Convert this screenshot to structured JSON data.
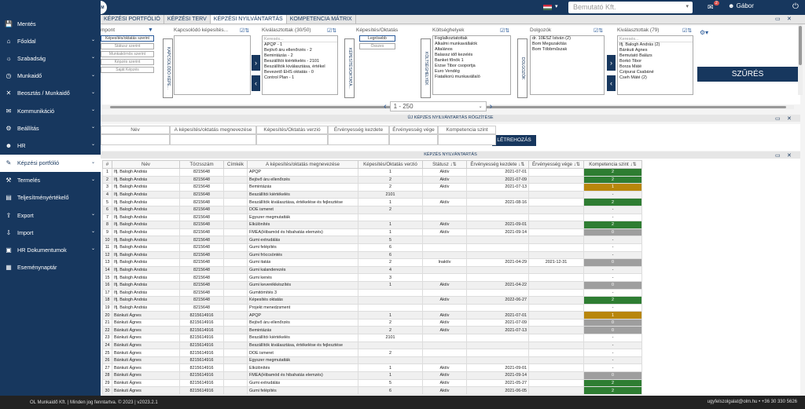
{
  "topbar": {
    "logo": "OLM",
    "lang": "▾",
    "company": "Bemutató Kft.",
    "mail_badge": "2",
    "user": "Gábor"
  },
  "sidebar": {
    "items": [
      {
        "icon": "💾",
        "label": "Mentés",
        "chev": ""
      },
      {
        "icon": "⌂",
        "label": "Főoldal",
        "chev": "⌄"
      },
      {
        "icon": "☼",
        "label": "Szabadság",
        "chev": "⌄"
      },
      {
        "icon": "◷",
        "label": "Munkaidő",
        "chev": "⌄"
      },
      {
        "icon": "✕",
        "label": "Beosztás / Munkaidő",
        "chev": "⌄"
      },
      {
        "icon": "✉",
        "label": "Kommunikáció",
        "chev": "⌄"
      },
      {
        "icon": "⚙",
        "label": "Beállítás",
        "chev": "⌄"
      },
      {
        "icon": "☻",
        "label": "HR",
        "chev": "⌄"
      },
      {
        "icon": "✎",
        "label": "Képzési portfólió",
        "chev": "⌄"
      },
      {
        "icon": "⚒",
        "label": "Termelés",
        "chev": "⌄"
      },
      {
        "icon": "▤",
        "label": "Teljesítményértékelő",
        "chev": ""
      },
      {
        "icon": "⇪",
        "label": "Export",
        "chev": "⌄"
      },
      {
        "icon": "⇩",
        "label": "Import",
        "chev": "⌄"
      },
      {
        "icon": "▣",
        "label": "HR Dokumentumok",
        "chev": "⌄"
      },
      {
        "icon": "▦",
        "label": "Eseménynaptár",
        "chev": ""
      }
    ]
  },
  "tabs": [
    "KÉPZÉSI PORTFÓLIÓ",
    "KÉPZÉSI TERV",
    "KÉPZÉSI NYILVÁNTARTÁS",
    "KOMPETENCIA MÁTRIX"
  ],
  "filters": {
    "col1_title": "mpont",
    "col1_buttons": [
      "Képesítés/oktatás szerint",
      "Státusz szerint",
      "Munkakörnös szerint",
      "Képzés szerint",
      "Saját Képzés"
    ],
    "vl1": "KAPCSOLÓDÓ KÉPE...",
    "col2_title": "Kapcsolódó képesítés...",
    "col3_title": "Kiválasztottak (30/50)",
    "col3_items": [
      "Keresés...",
      "APQP - 1",
      "Bejövő áru ellenőrzés - 2",
      "Bemintázás - 2",
      "Beszállítói kiértékelés - 2101",
      "Beszállítók kiválasztása, értékel",
      "Bevezető EHS oktatás - 0",
      "Control Plan - 1"
    ],
    "vl2": "KÉPESÍTÉS/OKTATÁ...",
    "col4_title": "Képesítés/Oktatás",
    "col4_buttons": [
      "Legrösebb",
      "Összes"
    ],
    "vl3": "KÖLTSÉGHELYEK",
    "col5_title": "Költséghelyek",
    "col5_items": [
      "Foglalkoztatottak",
      "Alkalmi munkavállalók",
      "Általános",
      "Balassz idő kezelés",
      "Banket főnök 1",
      "Erzse Tibor csoportja",
      "Euro Vendég",
      "Fiatalkorú munkavállaló"
    ],
    "vl4": "DOLGOZÓK",
    "col6_title": "Dolgozók",
    "col6_items": [
      "dr. 10ESZ István (2)",
      "Bom Megszakítás",
      "Bom Többműszak"
    ],
    "col7_title": "Kiválasztottak (79)",
    "col7_items": [
      "Keresés...",
      "Ifj. Balogh András (2)",
      "Bánkuti Ágnes",
      "Bemutató Balázs",
      "Borkó Tibor",
      "Borza Máté",
      "Czipurai Csabáné",
      "Cseh Máté (2)"
    ],
    "filter_button": "SZŰRÉS"
  },
  "pager": {
    "range": "1 - 250"
  },
  "newrec": {
    "title": "ÚJ KÉPZÉS NYILVÁNTARTÁS RÖGZÍTÉSE",
    "headers": [
      "Név",
      "A képesítés/oktatás megnevezése",
      "Képesítés/Oktatás verzió",
      "Érvényesség kezdete",
      "Érvényesség vége",
      "Kompetencia szint"
    ],
    "button": "LÉTREHOZÁS"
  },
  "grid": {
    "title": "KÉPZÉS NYILVÁNTARTÁS",
    "headers": [
      "#",
      "Név",
      "Törzsszám",
      "Címkék",
      "A képesítés/oktatás megnevezése",
      "Képesítés/Oktatás verzió",
      "Státusz ↓⇅",
      "Érvényesség kezdete ↓⇅",
      "Érvényesség vége ↓⇅",
      "Kompetencia szint ↓⇅"
    ],
    "rows": [
      [
        "1",
        "Ifj. Balogh András",
        "8215648",
        "",
        "APQP",
        "1",
        "Aktív",
        "2021-07-01",
        "",
        "2",
        "g"
      ],
      [
        "2",
        "Ifj. Balogh András",
        "8215648",
        "",
        "Bejövő áru ellenőrzés",
        "2",
        "Aktív",
        "2021-07-09",
        "",
        "2",
        "g"
      ],
      [
        "3",
        "Ifj. Balogh András",
        "8215648",
        "",
        "Bemintázás",
        "2",
        "Aktív",
        "2021-07-13",
        "",
        "1",
        "y"
      ],
      [
        "4",
        "Ifj. Balogh András",
        "8215648",
        "",
        "Beszállítói kiértékelés",
        "2101",
        "",
        "",
        "",
        "-",
        ""
      ],
      [
        "5",
        "Ifj. Balogh András",
        "8215648",
        "",
        "Beszállítók kiválasztása, értékelése és fejlesztése",
        "1",
        "Aktív",
        "2021-08-16",
        "",
        "2",
        "g"
      ],
      [
        "6",
        "Ifj. Balogh András",
        "8215648",
        "",
        "DOE ismeret",
        "2",
        "",
        "",
        "",
        "-",
        ""
      ],
      [
        "7",
        "Ifj. Balogh András",
        "8215648",
        "",
        "Egyszer megmutatták",
        "",
        "",
        "",
        "",
        "-",
        ""
      ],
      [
        "8",
        "Ifj. Balogh András",
        "8215648",
        "",
        "Elkülönítés",
        "1",
        "Aktív",
        "2021-09-01",
        "",
        "2",
        "g"
      ],
      [
        "9",
        "Ifj. Balogh András",
        "8215648",
        "",
        "FMEA(Hibamód és hibahatás elemzés)",
        "1",
        "Aktív",
        "2021-09-14",
        "",
        "0",
        "s"
      ],
      [
        "10",
        "Ifj. Balogh András",
        "8215648",
        "",
        "Gumi extrudálás",
        "5",
        "",
        "",
        "",
        "-",
        ""
      ],
      [
        "11",
        "Ifj. Balogh András",
        "8215648",
        "",
        "Gumi felépítés",
        "6",
        "",
        "",
        "",
        "-",
        ""
      ],
      [
        "12",
        "Ifj. Balogh András",
        "8215648",
        "",
        "Gumi fröccsöntés",
        "6",
        "",
        "",
        "",
        "-",
        ""
      ],
      [
        "13",
        "Ifj. Balogh András",
        "8215648",
        "",
        "Gumi itatás",
        "2",
        "Inaktív",
        "2021-04-29",
        "2021-12-31",
        "0",
        "s"
      ],
      [
        "14",
        "Ifj. Balogh András",
        "8215648",
        "",
        "Gumi kalanderezés",
        "4",
        "",
        "",
        "",
        "-",
        ""
      ],
      [
        "15",
        "Ifj. Balogh András",
        "8215648",
        "",
        "Gumi kenés",
        "3",
        "",
        "",
        "",
        "-",
        ""
      ],
      [
        "16",
        "Ifj. Balogh András",
        "8215648",
        "",
        "Gumi keverékkészítés",
        "1",
        "Aktív",
        "2021-04-22",
        "",
        "0",
        "s"
      ],
      [
        "17",
        "Ifj. Balogh András",
        "8215648",
        "",
        "Gumitömítés 3",
        "",
        "",
        "",
        "",
        "-",
        ""
      ],
      [
        "18",
        "Ifj. Balogh András",
        "8215648",
        "",
        "Képesítés oktatás",
        "",
        "Aktív",
        "2022-06-27",
        "",
        "2",
        "g"
      ],
      [
        "19",
        "Ifj. Balogh András",
        "8215648",
        "",
        "Projekt menedzsment",
        "",
        "",
        "",
        "",
        "-",
        ""
      ],
      [
        "20",
        "Bánkuti Ágnes",
        "8215614916",
        "",
        "APQP",
        "1",
        "Aktív",
        "2021-07-01",
        "",
        "1",
        "y"
      ],
      [
        "21",
        "Bánkuti Ágnes",
        "8215614916",
        "",
        "Bejövő áru ellenőrzés",
        "2",
        "Aktív",
        "2021-07-09",
        "",
        "0",
        "s"
      ],
      [
        "22",
        "Bánkuti Ágnes",
        "8215614916",
        "",
        "Bemintázás",
        "2",
        "Aktív",
        "2021-07-13",
        "",
        "0",
        "s"
      ],
      [
        "23",
        "Bánkuti Ágnes",
        "8215614916",
        "",
        "Beszállítói kiértékelés",
        "2101",
        "",
        "",
        "",
        "-",
        ""
      ],
      [
        "24",
        "Bánkuti Ágnes",
        "8215614916",
        "",
        "Beszállítók kiválasztása, értékelése és fejlesztése",
        "",
        "",
        "",
        "",
        "-",
        ""
      ],
      [
        "25",
        "Bánkuti Ágnes",
        "8215614916",
        "",
        "DOE ismeret",
        "2",
        "",
        "",
        "",
        "-",
        ""
      ],
      [
        "26",
        "Bánkuti Ágnes",
        "8215614916",
        "",
        "Egyszer megmutatták",
        "",
        "",
        "",
        "",
        "-",
        ""
      ],
      [
        "27",
        "Bánkuti Ágnes",
        "8215614916",
        "",
        "Elkülönítés",
        "1",
        "Aktív",
        "2021-09-01",
        "",
        "-",
        ""
      ],
      [
        "28",
        "Bánkuti Ágnes",
        "8215614916",
        "",
        "FMEA(Hibamód és hibahatás elemzés)",
        "1",
        "Aktív",
        "2021-09-14",
        "",
        "0",
        "s"
      ],
      [
        "29",
        "Bánkuti Ágnes",
        "8215614916",
        "",
        "Gumi extrudálás",
        "5",
        "Aktív",
        "2021-05-27",
        "",
        "2",
        "g"
      ],
      [
        "30",
        "Bánkuti Ágnes",
        "8215614916",
        "",
        "Gumi felépítés",
        "6",
        "Aktív",
        "2021-06-05",
        "",
        "2",
        "g"
      ]
    ]
  },
  "footer": {
    "left": "OL Munkaidő Kft.  |  Minden jog fenntartva. © 2023  |  v2023.2.1",
    "right": "ugyfelszolgalat@olm.hu    •  +36 30 330 5626"
  }
}
